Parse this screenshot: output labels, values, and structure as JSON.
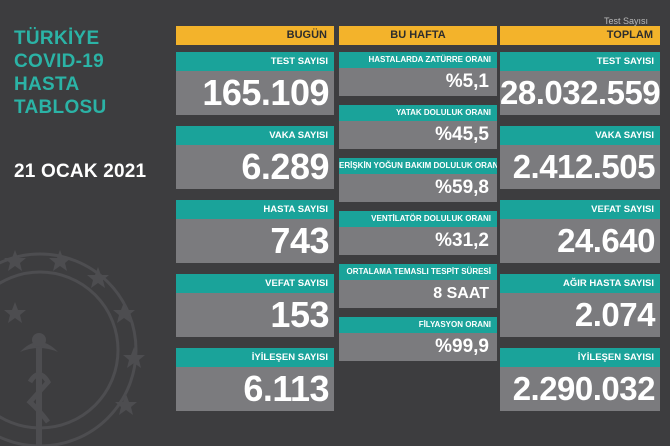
{
  "title_lines": [
    "TÜRKİYE",
    "COVID-19",
    "HASTA",
    "TABLOSU"
  ],
  "date": "21 OCAK 2021",
  "watermark": "Test Sayısı",
  "columns": {
    "today": {
      "header": "BUGÜN",
      "cards": [
        {
          "label": "TEST SAYISI",
          "value": "165.109"
        },
        {
          "label": "VAKA SAYISI",
          "value": "6.289"
        },
        {
          "label": "HASTA SAYISI",
          "value": "743"
        },
        {
          "label": "VEFAT SAYISI",
          "value": "153"
        },
        {
          "label": "İYİLEŞEN SAYISI",
          "value": "6.113"
        }
      ]
    },
    "week": {
      "header": "BU HAFTA",
      "cards": [
        {
          "label": "HASTALARDA ZATÜRRE ORANI",
          "value": "%5,1"
        },
        {
          "label": "YATAK DOLULUK ORANI",
          "value": "%45,5"
        },
        {
          "label": "ERİŞKİN YOĞUN BAKIM DOLULUK ORANI",
          "value": "%59,8"
        },
        {
          "label": "VENTİLATÖR DOLULUK ORANI",
          "value": "%31,2"
        },
        {
          "label": "ORTALAMA TEMASLI TESPİT SÜRESİ",
          "value": "8 SAAT"
        },
        {
          "label": "FİLYASYON ORANI",
          "value": "%99,9"
        }
      ]
    },
    "total": {
      "header": "TOPLAM",
      "cards": [
        {
          "label": "TEST SAYISI",
          "value": "28.032.559"
        },
        {
          "label": "VAKA SAYISI",
          "value": "2.412.505"
        },
        {
          "label": "VEFAT SAYISI",
          "value": "24.640"
        },
        {
          "label": "AĞIR HASTA SAYISI",
          "value": "2.074"
        },
        {
          "label": "İYİLEŞEN SAYISI",
          "value": "2.290.032"
        }
      ]
    }
  },
  "emblem_icon": "ministry-of-health-emblem-icon",
  "colors": {
    "background": "#3d3d3f",
    "header": "#f3b32b",
    "label_bar": "#1aa39a",
    "value_box": "#7b7b7e",
    "title": "#2bb3a6"
  }
}
